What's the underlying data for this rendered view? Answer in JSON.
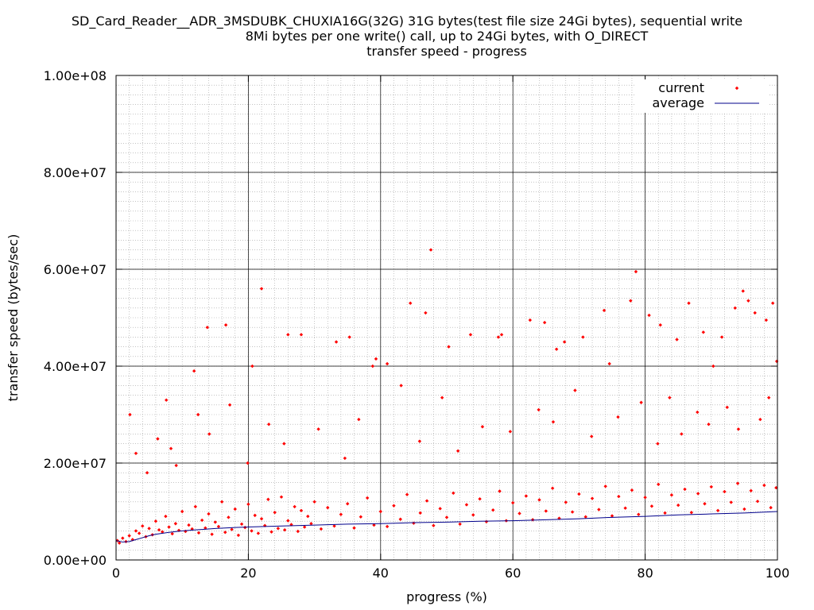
{
  "chart_data": {
    "type": "scatter",
    "title_lines": [
      "SD_Card_Reader__ADR_3MSDUBK_CHUXIA16G(32G) 31G bytes(test file size 24Gi bytes), sequential write",
      "8Mi bytes per one write() call, up to 24Gi bytes, with O_DIRECT",
      "transfer speed - progress"
    ],
    "xlabel": "progress (%)",
    "ylabel": "transfer speed (bytes/sec)",
    "xlim": [
      0,
      100
    ],
    "ylim": [
      0,
      100000000
    ],
    "x_ticks": [
      0,
      20,
      40,
      60,
      80,
      100
    ],
    "x_tick_labels": [
      "0",
      "20",
      "40",
      "60",
      "80",
      "100"
    ],
    "y_ticks": [
      0,
      20000000,
      40000000,
      60000000,
      80000000,
      100000000
    ],
    "y_tick_labels": [
      "0.00e+00",
      "2.00e+07",
      "4.00e+07",
      "6.00e+07",
      "8.00e+07",
      "1.00e+08"
    ],
    "grid": true,
    "minor_grid": true,
    "legend_position": "top-right",
    "series": [
      {
        "name": "current",
        "style": "points",
        "color": "#ff0000",
        "x": [
          0.2,
          0.5,
          1.0,
          1.5,
          2.0,
          2.5,
          3.0,
          3.5,
          4.0,
          4.5,
          5.0,
          5.5,
          6.0,
          6.5,
          7.0,
          7.5,
          8.0,
          8.5,
          9.0,
          9.5,
          10.0,
          10.5,
          11.0,
          11.5,
          12.0,
          12.5,
          13.0,
          13.5,
          14.0,
          14.5,
          15.0,
          15.5,
          16.0,
          16.5,
          17.0,
          17.5,
          18.0,
          18.5,
          19.0,
          19.5,
          20.0,
          20.5,
          21.0,
          21.5,
          22.0,
          22.5,
          23.0,
          23.5,
          24.0,
          24.5,
          25.0,
          25.5,
          26.0,
          26.5,
          27.0,
          27.5,
          28.0,
          28.5,
          29.0,
          29.5,
          30.0,
          31.0,
          32.0,
          33.0,
          34.0,
          35.0,
          36.0,
          37.0,
          38.0,
          39.0,
          40.0,
          41.0,
          42.0,
          43.0,
          44.0,
          45.0,
          46.0,
          47.0,
          48.0,
          49.0,
          50.0,
          51.0,
          52.0,
          53.0,
          54.0,
          55.0,
          56.0,
          57.0,
          58.0,
          59.0,
          60.0,
          61.0,
          62.0,
          63.0,
          64.0,
          65.0,
          66.0,
          67.0,
          68.0,
          69.0,
          70.0,
          71.0,
          72.0,
          73.0,
          74.0,
          75.0,
          76.0,
          77.0,
          78.0,
          79.0,
          80.0,
          81.0,
          82.0,
          83.0,
          84.0,
          85.0,
          86.0,
          87.0,
          88.0,
          89.0,
          90.0,
          91.0,
          92.0,
          93.0,
          94.0,
          95.0,
          96.0,
          97.0,
          98.0,
          99.0,
          99.8,
          2.1,
          7.6,
          8.3,
          11.8,
          13.8,
          16.6,
          20.6,
          22.0,
          26.0,
          28.0,
          33.3,
          35.3,
          38.8,
          39.3,
          41.0,
          44.5,
          46.8,
          47.6,
          50.3,
          53.6,
          57.8,
          58.3,
          62.6,
          64.8,
          66.6,
          67.8,
          70.6,
          73.8,
          74.6,
          77.8,
          78.6,
          80.6,
          82.3,
          84.8,
          86.6,
          88.8,
          90.3,
          91.6,
          93.6,
          94.8,
          95.6,
          96.6,
          98.3,
          99.3,
          99.9,
          3.0,
          4.7,
          6.3,
          9.1,
          12.4,
          14.1,
          17.2,
          19.9,
          23.1,
          25.4,
          30.6,
          34.6,
          36.7,
          43.1,
          45.9,
          49.3,
          51.7,
          55.4,
          59.6,
          63.9,
          66.1,
          69.4,
          71.9,
          75.9,
          79.4,
          81.9,
          83.7,
          85.5,
          87.9,
          89.6,
          92.4,
          94.1,
          97.4,
          98.7
        ],
        "y": [
          4000000,
          3500000,
          4500000,
          3800000,
          5000000,
          4200000,
          6000000,
          5500000,
          7000000,
          4800000,
          6500000,
          5200000,
          8000000,
          6200000,
          5800000,
          9000000,
          6800000,
          5400000,
          7500000,
          6100000,
          10000000,
          5900000,
          7200000,
          6400000,
          11000000,
          5600000,
          8200000,
          6600000,
          9500000,
          5300000,
          7800000,
          6900000,
          12000000,
          5700000,
          8800000,
          6300000,
          10500000,
          5100000,
          7400000,
          6700000,
          11500000,
          6000000,
          9200000,
          5500000,
          8500000,
          7100000,
          12500000,
          5800000,
          9800000,
          6500000,
          13000000,
          6200000,
          8100000,
          7300000,
          11000000,
          5900000,
          10200000,
          6800000,
          9000000,
          7500000,
          12000000,
          6400000,
          10800000,
          7000000,
          9400000,
          11600000,
          6600000,
          8900000,
          12800000,
          7200000,
          10000000,
          6900000,
          11200000,
          8400000,
          13500000,
          7600000,
          9700000,
          12200000,
          7100000,
          10600000,
          8800000,
          13800000,
          7400000,
          11400000,
          9300000,
          12600000,
          7900000,
          10300000,
          14200000,
          8100000,
          11800000,
          9600000,
          13200000,
          8300000,
          12400000,
          10100000,
          14800000,
          8600000,
          11900000,
          9900000,
          13600000,
          8900000,
          12700000,
          10400000,
          15200000,
          9100000,
          13100000,
          10700000,
          14400000,
          9400000,
          12900000,
          11100000,
          15600000,
          9700000,
          13400000,
          11300000,
          14600000,
          9800000,
          13700000,
          11600000,
          15100000,
          10200000,
          14100000,
          11900000,
          15800000,
          10500000,
          14300000,
          12100000,
          15400000,
          10800000,
          14900000,
          30000000,
          33000000,
          23000000,
          39000000,
          48000000,
          48500000,
          40000000,
          56000000,
          46500000,
          46500000,
          45000000,
          46000000,
          40000000,
          41500000,
          40500000,
          53000000,
          51000000,
          64000000,
          44000000,
          46500000,
          46000000,
          46500000,
          49500000,
          49000000,
          43500000,
          45000000,
          46000000,
          51500000,
          40500000,
          53500000,
          59500000,
          50500000,
          48500000,
          45500000,
          53000000,
          47000000,
          40000000,
          46000000,
          52000000,
          55500000,
          53500000,
          51000000,
          49500000,
          53000000,
          41000000,
          22000000,
          18000000,
          25000000,
          19500000,
          30000000,
          26000000,
          32000000,
          20000000,
          28000000,
          24000000,
          27000000,
          21000000,
          29000000,
          36000000,
          24500000,
          33500000,
          22500000,
          27500000,
          26500000,
          31000000,
          28500000,
          35000000,
          25500000,
          29500000,
          32500000,
          24000000,
          33500000,
          26000000,
          30500000,
          28000000,
          31500000,
          27000000,
          29000000,
          33500000
        ]
      },
      {
        "name": "average",
        "style": "line",
        "color": "#00008b",
        "x": [
          0,
          1,
          2,
          3,
          4,
          5,
          6,
          8,
          10,
          12,
          15,
          18,
          20,
          25,
          30,
          35,
          40,
          45,
          50,
          55,
          60,
          65,
          70,
          75,
          80,
          85,
          90,
          95,
          100
        ],
        "y": [
          4000000,
          3700000,
          3800000,
          4200000,
          4600000,
          5000000,
          5300000,
          5700000,
          6000000,
          6200000,
          6500000,
          6700000,
          6800000,
          7000000,
          7200000,
          7400000,
          7500000,
          7700000,
          7800000,
          8000000,
          8100000,
          8300000,
          8500000,
          8800000,
          9000000,
          9300000,
          9500000,
          9700000,
          10000000
        ]
      }
    ]
  }
}
